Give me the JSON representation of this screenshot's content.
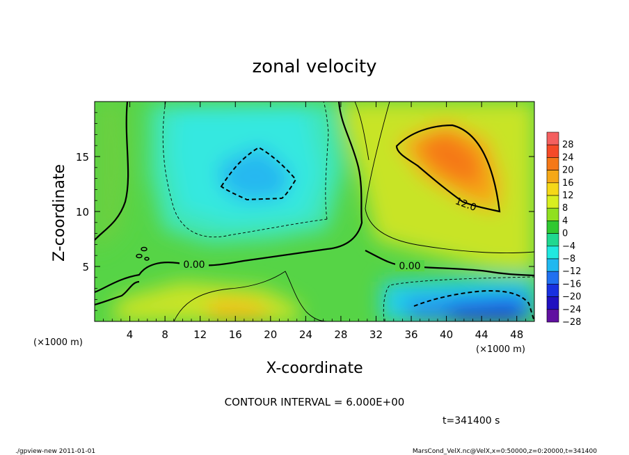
{
  "chart_data": {
    "type": "heatmap",
    "title": "zonal velocity",
    "xlabel": "X-coordinate",
    "ylabel": "Z-coordinate",
    "x_unit": "(×1000 m)",
    "y_unit": "(×1000 m)",
    "xlim": [
      0,
      50
    ],
    "ylim": [
      0,
      20
    ],
    "x_ticks": [
      "4",
      "8",
      "12",
      "16",
      "20",
      "24",
      "28",
      "32",
      "36",
      "40",
      "44",
      "48"
    ],
    "y_ticks": [
      "5",
      "10",
      "15"
    ],
    "colorbar": {
      "labels": [
        "28",
        "24",
        "20",
        "16",
        "12",
        "8",
        "4",
        "0",
        "−4",
        "−8",
        "−12",
        "−16",
        "−20",
        "−24",
        "−28"
      ],
      "colors": [
        "#f46060",
        "#f54a28",
        "#f57818",
        "#f5a818",
        "#f5d818",
        "#d8ee20",
        "#90e020",
        "#30c830",
        "#20d890",
        "#20e8e0",
        "#20b8f0",
        "#2070f0",
        "#1830e0",
        "#2010c0",
        "#6010a0"
      ]
    },
    "contour_labels": [
      "0.00",
      "0.00",
      "12.0"
    ],
    "contour_interval": "CONTOUR INTERVAL = 6.000E+00",
    "time": "t=341400 s",
    "footer_left": "./gpview-new  2011-01-01",
    "footer_right": "MarsCond_VelX.nc@VelX,x=0:50000,z=0:20000,t=341400"
  }
}
